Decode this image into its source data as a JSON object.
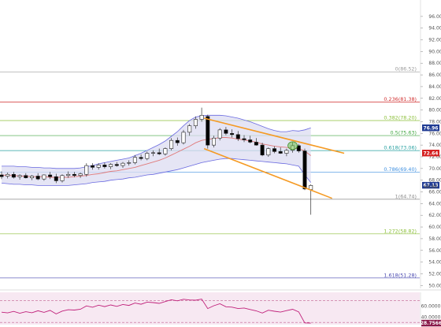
{
  "chart_data": {
    "type": "candlestick",
    "title": "",
    "xlabel": "",
    "ylabel": "",
    "ylim": [
      49.5,
      98
    ],
    "y_ticks": [
      50,
      52,
      54,
      56,
      58,
      60,
      62,
      64,
      66,
      68,
      70,
      72,
      74,
      76,
      78,
      80,
      82,
      84,
      86,
      88,
      90,
      92,
      94,
      96
    ],
    "y_tick_labels": [
      "50.00",
      "52.00",
      "54.00",
      "56.00",
      "58.00",
      "60.00",
      "62.00",
      "64.00",
      "66.00",
      "68.00",
      "70.00",
      "72.00",
      "74.00",
      "76.00",
      "78.00",
      "80.00",
      "82.00",
      "84.00",
      "86.00",
      "88.00",
      "90.00",
      "92.00",
      "94.00",
      "96.00"
    ],
    "grid": false,
    "colors": {
      "up_fill": "#ffffff",
      "down_fill": "#000000",
      "bollinger_fill": "#dcdcf2",
      "bollinger_line": "#6a6ae0",
      "middle_band": "#e07a7a",
      "channel": "#f59a23",
      "rsi_line": "#c0207a",
      "rsi_bg": "#f7e8f2"
    },
    "candles": [
      {
        "o": 68.9,
        "h": 69.5,
        "l": 68.2,
        "c": 68.6
      },
      {
        "o": 68.7,
        "h": 69.3,
        "l": 68.3,
        "c": 69.0
      },
      {
        "o": 69.0,
        "h": 69.4,
        "l": 68.3,
        "c": 68.5
      },
      {
        "o": 68.6,
        "h": 69.0,
        "l": 68.1,
        "c": 68.8
      },
      {
        "o": 68.8,
        "h": 69.2,
        "l": 68.3,
        "c": 68.4
      },
      {
        "o": 68.4,
        "h": 68.9,
        "l": 68.0,
        "c": 68.7
      },
      {
        "o": 68.7,
        "h": 69.2,
        "l": 68.0,
        "c": 68.2
      },
      {
        "o": 68.2,
        "h": 69.0,
        "l": 67.9,
        "c": 68.9
      },
      {
        "o": 68.9,
        "h": 69.4,
        "l": 68.2,
        "c": 68.6
      },
      {
        "o": 68.6,
        "h": 69.1,
        "l": 67.5,
        "c": 67.9
      },
      {
        "o": 67.9,
        "h": 69.0,
        "l": 67.6,
        "c": 68.8
      },
      {
        "o": 68.8,
        "h": 69.5,
        "l": 68.4,
        "c": 69.0
      },
      {
        "o": 69.0,
        "h": 69.4,
        "l": 68.5,
        "c": 68.8
      },
      {
        "o": 68.8,
        "h": 69.3,
        "l": 68.4,
        "c": 69.1
      },
      {
        "o": 69.0,
        "h": 70.9,
        "l": 68.6,
        "c": 70.5
      },
      {
        "o": 70.5,
        "h": 70.9,
        "l": 69.8,
        "c": 70.2
      },
      {
        "o": 70.2,
        "h": 70.9,
        "l": 69.8,
        "c": 70.6
      },
      {
        "o": 70.6,
        "h": 71.0,
        "l": 70.0,
        "c": 70.3
      },
      {
        "o": 70.3,
        "h": 70.9,
        "l": 69.9,
        "c": 70.7
      },
      {
        "o": 70.7,
        "h": 71.1,
        "l": 70.3,
        "c": 70.5
      },
      {
        "o": 70.5,
        "h": 71.1,
        "l": 70.1,
        "c": 70.9
      },
      {
        "o": 70.9,
        "h": 71.4,
        "l": 70.5,
        "c": 71.0
      },
      {
        "o": 71.0,
        "h": 72.3,
        "l": 70.7,
        "c": 71.9
      },
      {
        "o": 71.9,
        "h": 72.4,
        "l": 71.4,
        "c": 71.7
      },
      {
        "o": 71.7,
        "h": 72.9,
        "l": 71.4,
        "c": 72.6
      },
      {
        "o": 72.6,
        "h": 73.1,
        "l": 72.1,
        "c": 72.7
      },
      {
        "o": 72.7,
        "h": 73.4,
        "l": 72.3,
        "c": 72.5
      },
      {
        "o": 72.5,
        "h": 73.6,
        "l": 72.2,
        "c": 73.4
      },
      {
        "o": 73.4,
        "h": 75.2,
        "l": 73.1,
        "c": 74.8
      },
      {
        "o": 74.8,
        "h": 75.3,
        "l": 73.9,
        "c": 74.4
      },
      {
        "o": 74.4,
        "h": 76.6,
        "l": 74.1,
        "c": 76.2
      },
      {
        "o": 76.2,
        "h": 77.6,
        "l": 75.6,
        "c": 77.3
      },
      {
        "o": 77.3,
        "h": 78.9,
        "l": 76.8,
        "c": 78.4
      },
      {
        "o": 78.4,
        "h": 80.4,
        "l": 78.0,
        "c": 79.1
      },
      {
        "o": 78.9,
        "h": 79.2,
        "l": 73.4,
        "c": 74.0
      },
      {
        "o": 74.0,
        "h": 75.6,
        "l": 73.6,
        "c": 75.2
      },
      {
        "o": 75.2,
        "h": 76.9,
        "l": 74.8,
        "c": 76.6
      },
      {
        "o": 76.6,
        "h": 77.1,
        "l": 75.7,
        "c": 76.0
      },
      {
        "o": 76.0,
        "h": 76.7,
        "l": 75.3,
        "c": 75.8
      },
      {
        "o": 75.8,
        "h": 76.4,
        "l": 74.7,
        "c": 75.1
      },
      {
        "o": 75.1,
        "h": 75.7,
        "l": 74.5,
        "c": 74.9
      },
      {
        "o": 74.9,
        "h": 75.6,
        "l": 74.3,
        "c": 74.5
      },
      {
        "o": 74.5,
        "h": 75.2,
        "l": 73.9,
        "c": 74.0
      },
      {
        "o": 74.0,
        "h": 74.4,
        "l": 72.1,
        "c": 72.3
      },
      {
        "o": 72.3,
        "h": 73.6,
        "l": 72.0,
        "c": 73.4
      },
      {
        "o": 73.4,
        "h": 73.8,
        "l": 72.6,
        "c": 72.9
      },
      {
        "o": 72.9,
        "h": 73.6,
        "l": 72.5,
        "c": 72.6
      },
      {
        "o": 72.6,
        "h": 73.4,
        "l": 72.1,
        "c": 73.1
      },
      {
        "o": 73.1,
        "h": 74.5,
        "l": 72.7,
        "c": 73.9
      },
      {
        "o": 73.9,
        "h": 74.2,
        "l": 72.7,
        "c": 73.0
      },
      {
        "o": 73.0,
        "h": 73.4,
        "l": 66.3,
        "c": 66.5
      },
      {
        "o": 66.4,
        "h": 67.3,
        "l": 62.1,
        "c": 67.1
      }
    ],
    "bollinger": {
      "upper": [
        70.4,
        70.4,
        70.4,
        70.3,
        70.3,
        70.2,
        70.2,
        70.1,
        70.1,
        70.0,
        70.0,
        70.0,
        70.0,
        70.1,
        70.3,
        70.5,
        70.8,
        71.0,
        71.2,
        71.4,
        71.6,
        71.8,
        72.2,
        72.6,
        73.1,
        73.6,
        74.1,
        74.7,
        75.5,
        76.3,
        77.3,
        78.2,
        78.8,
        79.0,
        79.1,
        79.1,
        79.1,
        79.0,
        78.8,
        78.6,
        78.3,
        78.0,
        77.6,
        77.2,
        76.8,
        76.5,
        76.3,
        76.3,
        76.5,
        76.4,
        76.6,
        76.96
      ],
      "middle": [
        68.9,
        68.8,
        68.8,
        68.7,
        68.7,
        68.6,
        68.6,
        68.6,
        68.5,
        68.5,
        68.5,
        68.5,
        68.6,
        68.7,
        68.8,
        69.0,
        69.1,
        69.3,
        69.5,
        69.6,
        69.8,
        70.0,
        70.2,
        70.5,
        70.8,
        71.1,
        71.4,
        71.8,
        72.3,
        72.8,
        73.3,
        73.8,
        74.4,
        74.8,
        75.0,
        75.1,
        75.3,
        75.3,
        75.2,
        75.0,
        74.9,
        74.7,
        74.5,
        74.2,
        74.0,
        73.8,
        73.7,
        73.6,
        73.5,
        73.4,
        73.0,
        72.2
      ],
      "lower": [
        67.5,
        67.4,
        67.3,
        67.3,
        67.2,
        67.2,
        67.1,
        67.1,
        67.1,
        67.1,
        67.1,
        67.1,
        67.2,
        67.3,
        67.4,
        67.6,
        67.7,
        67.8,
        68.0,
        68.1,
        68.2,
        68.4,
        68.5,
        68.7,
        68.9,
        69.0,
        69.2,
        69.4,
        69.6,
        69.8,
        70.1,
        70.4,
        70.7,
        71.0,
        71.2,
        71.4,
        71.6,
        71.7,
        71.7,
        71.6,
        71.5,
        71.4,
        71.3,
        71.2,
        71.1,
        71.0,
        70.9,
        70.8,
        70.6,
        70.4,
        68.9,
        67.6
      ]
    },
    "fibonacci": [
      {
        "label": "0(86.52)",
        "value": 86.52,
        "color": "#9a9a9a"
      },
      {
        "label": "0.236(81.38)",
        "value": 81.38,
        "color": "#d02c2c"
      },
      {
        "label": "0.382(78.20)",
        "value": 78.2,
        "color": "#8cbf3a"
      },
      {
        "label": "0.5(75.63)",
        "value": 75.63,
        "color": "#3ea53e"
      },
      {
        "label": "0.618(73.06)",
        "value": 73.06,
        "color": "#27a0a0"
      },
      {
        "label": "0.786(69.40)",
        "value": 69.4,
        "color": "#3d8fe0"
      },
      {
        "label": "1(64.74)",
        "value": 64.74,
        "color": "#8a8a8a"
      },
      {
        "label": "1.272(58.82)",
        "value": 58.82,
        "color": "#8cbf3a"
      },
      {
        "label": "1.618(51.28)",
        "value": 51.28,
        "color": "#4a4ab0"
      }
    ],
    "price_badges": [
      {
        "label": "76.96",
        "value": 76.96,
        "color": "#1f3a93"
      },
      {
        "label": "72.64",
        "value": 72.64,
        "color": "#d41f1f"
      },
      {
        "label": "67.13",
        "value": 67.13,
        "color": "#1f3a93"
      },
      {
        "label": "66.86",
        "value": 66.86,
        "color": "transparent"
      }
    ],
    "channel": {
      "upper": [
        {
          "x": 33.4,
          "y": 78.6
        },
        {
          "x": 56.5,
          "y": 72.6
        }
      ],
      "lower": [
        {
          "x": 33.4,
          "y": 73.4
        },
        {
          "x": 54.5,
          "y": 64.9
        }
      ]
    },
    "highlight_marker": {
      "x": 48,
      "y": 73.9
    },
    "rsi": {
      "ylim": [
        26,
        85
      ],
      "ticks": [
        {
          "label": "60.0000",
          "value": 60
        },
        {
          "label": "40.0000",
          "value": 40
        }
      ],
      "levels": [
        70,
        30
      ],
      "current_label": "28.7566",
      "current_value": 28.7566,
      "values": [
        48.8,
        47.5,
        50.2,
        46.9,
        49.6,
        47.8,
        51.3,
        48.4,
        52.0,
        45.6,
        50.8,
        53.2,
        52.6,
        54.1,
        60.3,
        57.8,
        61.5,
        58.9,
        62.0,
        59.4,
        62.8,
        61.1,
        65.4,
        63.2,
        67.1,
        66.3,
        64.8,
        68.2,
        71.5,
        69.4,
        72.3,
        71.0,
        70.6,
        72.6,
        55.4,
        60.5,
        64.2,
        58.7,
        57.9,
        55.3,
        56.4,
        53.6,
        51.2,
        47.1,
        52.3,
        50.4,
        48.9,
        51.6,
        54.0,
        49.3,
        29.2,
        28.7566
      ]
    }
  }
}
